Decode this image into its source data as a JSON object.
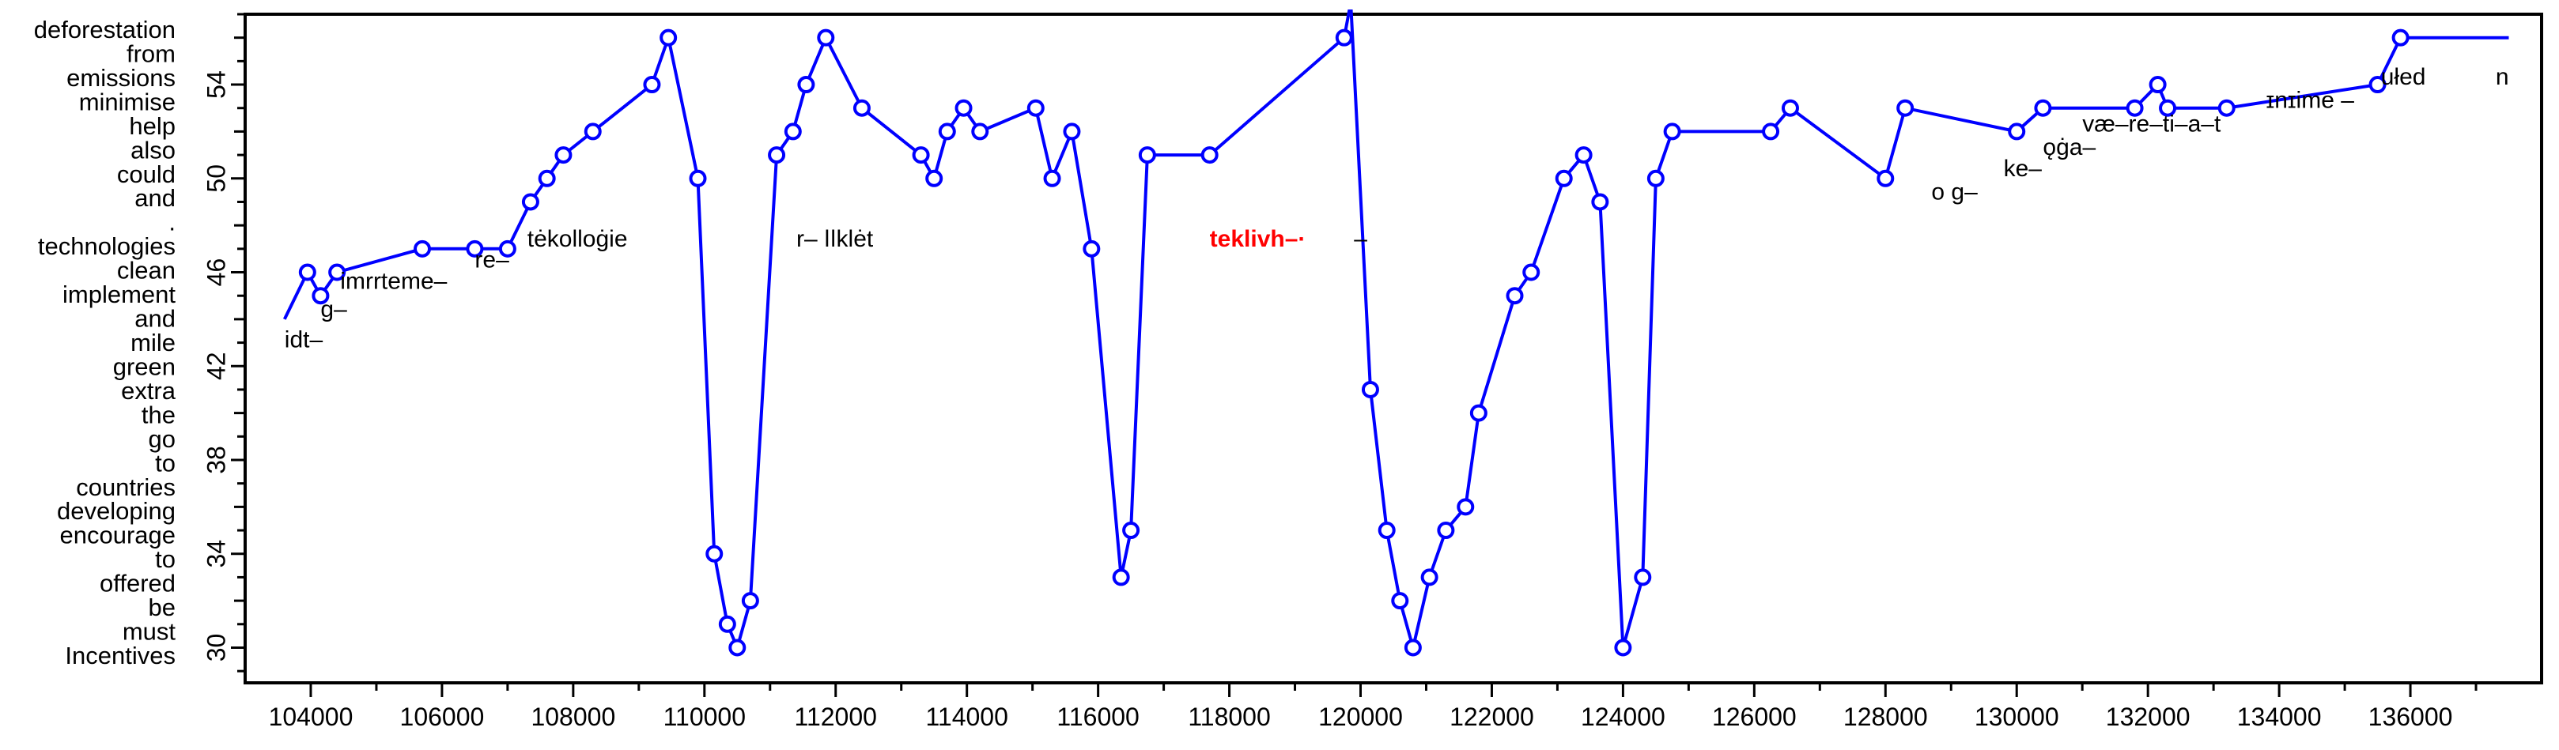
{
  "chart_data": {
    "type": "line",
    "xlim": [
      103000,
      138000
    ],
    "ylim": [
      28.5,
      57
    ],
    "x_ticks": [
      104000,
      106000,
      108000,
      110000,
      112000,
      114000,
      116000,
      118000,
      120000,
      122000,
      124000,
      126000,
      128000,
      130000,
      132000,
      134000,
      136000
    ],
    "y_ticks": [
      30,
      34,
      38,
      42,
      46,
      50,
      54
    ],
    "tick_labels_x": [
      "104000",
      "106000",
      "108000",
      "110000",
      "112000",
      "114000",
      "116000",
      "118000",
      "120000",
      "122000",
      "124000",
      "126000",
      "128000",
      "130000",
      "132000",
      "134000",
      "136000"
    ],
    "tick_labels_y": [
      "30",
      "34",
      "38",
      "42",
      "46",
      "50",
      "54"
    ],
    "word_labels": [
      "Incentives",
      "must",
      "be",
      "offered",
      "to",
      "encourage",
      "developing",
      "countries",
      "to",
      "go",
      "the",
      "extra",
      "green",
      "mile",
      "and",
      "implement",
      "clean",
      "technologies",
      ".",
      "and",
      "could",
      "also",
      "help",
      "minimise",
      "emissions",
      "from",
      "deforestation"
    ],
    "series": [
      {
        "color": "#0000ff",
        "x": [
          103600,
          103950,
          104150,
          104400,
          105700,
          106500,
          107000,
          107350,
          107600,
          107850,
          108300,
          109200,
          109450,
          109900,
          110150,
          110350,
          110500,
          110700,
          111100,
          111350,
          111550,
          111850,
          112400,
          113300,
          113500,
          113700,
          113950,
          114200,
          115050,
          115300,
          115600,
          115900,
          116350,
          116500,
          116750,
          117700,
          119750,
          119850,
          120150,
          120400,
          120600,
          120800,
          121050,
          121300,
          121600,
          121800,
          122350,
          122600,
          123100,
          123400,
          123650,
          124000,
          124300,
          124500,
          124750,
          126250,
          126550,
          128000,
          128300,
          130000,
          130400,
          131800,
          132150,
          132300,
          133200,
          135500,
          135850,
          137500
        ],
        "y": [
          44,
          46,
          45,
          46,
          47,
          47,
          47,
          49,
          50,
          51,
          52,
          54,
          56,
          50,
          34,
          31,
          30,
          32,
          51,
          52,
          54,
          56,
          53,
          51,
          50,
          52,
          53,
          52,
          53,
          50,
          52,
          47,
          33,
          35,
          51,
          51,
          56,
          57.5,
          41,
          35,
          32,
          30,
          33,
          35,
          36,
          40,
          45,
          46,
          50,
          51,
          49,
          30,
          33,
          50,
          52,
          52,
          53,
          50,
          53,
          52,
          53,
          53,
          54,
          53,
          53,
          54,
          56,
          56
        ]
      }
    ],
    "annotations": [
      {
        "text": "idt–",
        "x": 103600,
        "y": 42.8,
        "color": "#000000"
      },
      {
        "text": "g–",
        "x": 104150,
        "y": 44.1,
        "color": "#000000"
      },
      {
        "text": "imrrteme–",
        "x": 104450,
        "y": 45.3,
        "color": "#000000"
      },
      {
        "text": "re–",
        "x": 106500,
        "y": 46.2,
        "color": "#000000"
      },
      {
        "text": "tėkolloġie",
        "x": 107300,
        "y": 47.1,
        "color": "#000000"
      },
      {
        "text": "r– ǀǀklėt",
        "x": 111400,
        "y": 47.1,
        "color": "#000000"
      },
      {
        "text": "teklivh–·",
        "x": 117700,
        "y": 47.1,
        "color": "#ff0000"
      },
      {
        "text": "–",
        "x": 119900,
        "y": 47.1,
        "color": "#000000"
      },
      {
        "text": "o g–",
        "x": 128700,
        "y": 49.1,
        "color": "#000000"
      },
      {
        "text": "ke–",
        "x": 129800,
        "y": 50.1,
        "color": "#000000"
      },
      {
        "text": "ǫġa–",
        "x": 130400,
        "y": 51.0,
        "color": "#000000"
      },
      {
        "text": "væ–re–ti–a–t",
        "x": 131000,
        "y": 52.0,
        "color": "#000000"
      },
      {
        "text": "ɪnɪime –",
        "x": 133800,
        "y": 53.0,
        "color": "#000000"
      },
      {
        "text": "ułed",
        "x": 135550,
        "y": 54.0,
        "color": "#000000"
      },
      {
        "text": "n",
        "x": 137300,
        "y": 54.0,
        "color": "#000000"
      }
    ]
  }
}
